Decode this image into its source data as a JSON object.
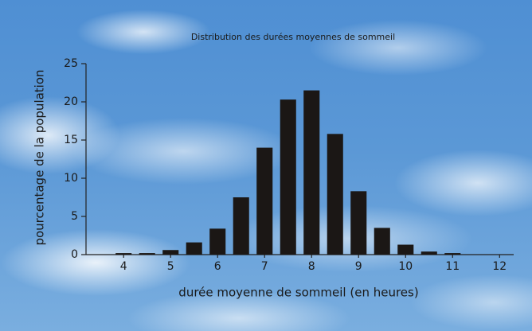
{
  "chart_data": {
    "type": "bar",
    "title": "Distribution des durées moyennes de sommeil",
    "x_label": "durée moyenne de sommeil (en heures)",
    "y_label": "pourcentage de la population",
    "x": [
      4,
      4.5,
      5,
      5.5,
      6,
      6.5,
      7,
      7.5,
      8,
      8.5,
      9,
      9.5,
      10,
      10.5,
      11
    ],
    "values": [
      0.2,
      0.2,
      0.6,
      1.6,
      3.4,
      7.5,
      14.0,
      20.3,
      21.5,
      15.8,
      8.3,
      3.5,
      1.3,
      0.4,
      0.2
    ],
    "color": "#1b1715",
    "xlim": [
      3.2,
      12.3
    ],
    "xticks": [
      4,
      5,
      6,
      7,
      8,
      9,
      10,
      11,
      12
    ],
    "ylim": [
      0,
      25
    ],
    "yticks": [
      0,
      5,
      10,
      15,
      20,
      25
    ],
    "grid": false
  }
}
